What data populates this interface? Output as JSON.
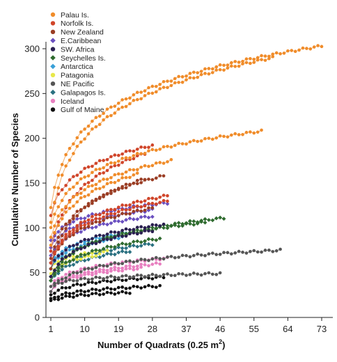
{
  "chart_data": {
    "type": "scatter",
    "xlabel": "Number of Quadrats (0.25 m",
    "xlabel_sup": "2",
    "xlabel_close": ")",
    "ylabel": "Cumulative Number of Species",
    "xlim": [
      1,
      75
    ],
    "ylim": [
      0,
      310
    ],
    "x_ticks": [
      1,
      10,
      19,
      28,
      37,
      46,
      55,
      64,
      73
    ],
    "y_ticks": [
      0,
      50,
      100,
      150,
      200,
      250,
      300
    ],
    "grid": false,
    "legend_position": "top-left",
    "series": [
      {
        "name": "Palau Is.",
        "color": "#f08c2a",
        "marker": "circle",
        "curves": [
          {
            "n": 73,
            "start": 122,
            "end": 303
          },
          {
            "n": 60,
            "start": 105,
            "end": 290
          },
          {
            "n": 57,
            "start": 100,
            "end": 208
          },
          {
            "n": 33,
            "start": 90,
            "end": 175
          },
          {
            "n": 24,
            "start": 80,
            "end": 160
          }
        ]
      },
      {
        "name": "Norfolk Is.",
        "color": "#d0452a",
        "marker": "circle",
        "curves": [
          {
            "n": 28,
            "start": 115,
            "end": 192
          },
          {
            "n": 26,
            "start": 75,
            "end": 183
          },
          {
            "n": 32,
            "start": 60,
            "end": 136
          },
          {
            "n": 32,
            "start": 60,
            "end": 130
          }
        ]
      },
      {
        "name": "New Zealand",
        "color": "#9a3d24",
        "marker": "circle",
        "curves": [
          {
            "n": 31,
            "start": 65,
            "end": 158
          },
          {
            "n": 26,
            "start": 55,
            "end": 155
          },
          {
            "n": 28,
            "start": 60,
            "end": 122
          }
        ]
      },
      {
        "name": "E.Caribbean",
        "color": "#6a4fc0",
        "marker": "diamond",
        "curves": [
          {
            "n": 32,
            "start": 85,
            "end": 128
          },
          {
            "n": 28,
            "start": 78,
            "end": 120
          },
          {
            "n": 28,
            "start": 70,
            "end": 113
          }
        ]
      },
      {
        "name": "SW. Africa",
        "color": "#2a1f50",
        "marker": "circle",
        "curves": [
          {
            "n": 31,
            "start": 55,
            "end": 104
          },
          {
            "n": 28,
            "start": 45,
            "end": 97
          }
        ]
      },
      {
        "name": "Seychelles Is.",
        "color": "#2f6b2f",
        "marker": "diamond",
        "curves": [
          {
            "n": 47,
            "start": 40,
            "end": 111
          },
          {
            "n": 42,
            "start": 45,
            "end": 106
          },
          {
            "n": 30,
            "start": 40,
            "end": 88
          }
        ]
      },
      {
        "name": "Antarctica",
        "color": "#3aa0d8",
        "marker": "diamond",
        "curves": [
          {
            "n": 22,
            "start": 60,
            "end": 95
          },
          {
            "n": 20,
            "start": 55,
            "end": 90
          }
        ]
      },
      {
        "name": "Patagonia",
        "color": "#e8e84a",
        "marker": "circle",
        "curves": [
          {
            "n": 16,
            "start": 55,
            "end": 75
          },
          {
            "n": 14,
            "start": 50,
            "end": 70
          }
        ]
      },
      {
        "name": "NE Pacific",
        "color": "#555555",
        "marker": "circle",
        "curves": [
          {
            "n": 62,
            "start": 30,
            "end": 75
          },
          {
            "n": 46,
            "start": 35,
            "end": 49
          }
        ]
      },
      {
        "name": "Galapagos Is.",
        "color": "#2a7080",
        "marker": "diamond",
        "curves": [
          {
            "n": 28,
            "start": 45,
            "end": 82
          },
          {
            "n": 22,
            "start": 40,
            "end": 74
          }
        ]
      },
      {
        "name": "Iceland",
        "color": "#e880c0",
        "marker": "circle",
        "curves": [
          {
            "n": 32,
            "start": 35,
            "end": 66
          },
          {
            "n": 30,
            "start": 30,
            "end": 60
          },
          {
            "n": 25,
            "start": 30,
            "end": 55
          }
        ]
      },
      {
        "name": "Gulf of Maine",
        "color": "#111111",
        "marker": "circle",
        "curves": [
          {
            "n": 31,
            "start": 25,
            "end": 45
          },
          {
            "n": 30,
            "start": 20,
            "end": 35
          },
          {
            "n": 22,
            "start": 18,
            "end": 28
          }
        ]
      }
    ]
  }
}
